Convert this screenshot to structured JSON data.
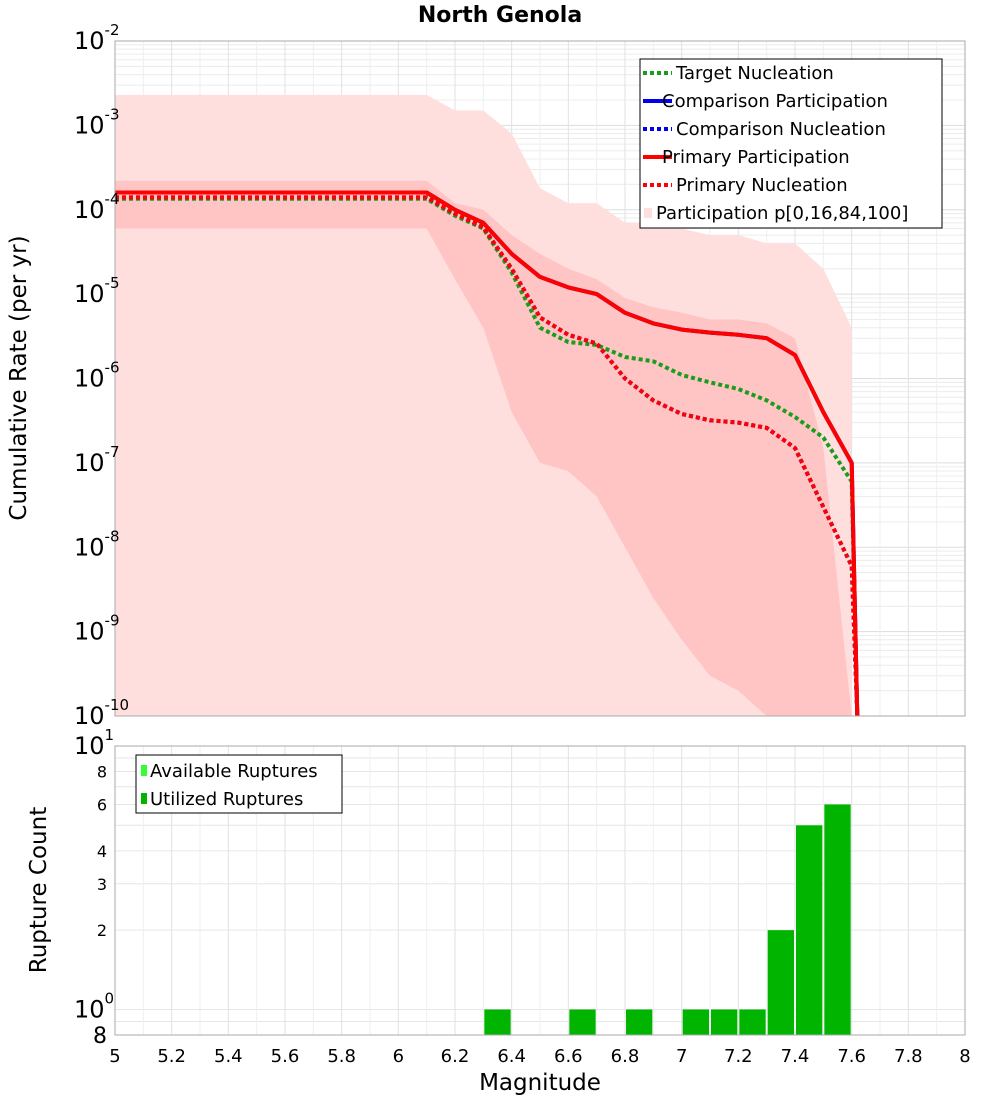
{
  "chart_data": [
    {
      "type": "line",
      "title": "North Genola",
      "xlabel": "Magnitude",
      "ylabel": "Cumulative Rate (per yr)",
      "yscale": "log",
      "xlim": [
        5,
        8
      ],
      "ylim": [
        1e-10,
        0.01
      ],
      "ytick_exponents": [
        -10,
        -9,
        -8,
        -7,
        -6,
        -5,
        -4,
        -3,
        -2
      ],
      "ytick_base": "10",
      "colors": {
        "target": "#1a9d1a",
        "comparison": "#0000ee",
        "primary": "#ff0000",
        "band_outer": "#ffdede",
        "band_inner": "#ffc4c4"
      },
      "legend": [
        {
          "label": "Target Nucleation",
          "style": "dotted",
          "color": "#1a9d1a"
        },
        {
          "label": "Comparison Participation",
          "style": "solid",
          "color": "#0000ee"
        },
        {
          "label": "Comparison Nucleation",
          "style": "dotted",
          "color": "#0000ee"
        },
        {
          "label": "Primary Participation",
          "style": "solid",
          "color": "#ff0000"
        },
        {
          "label": "Primary Nucleation",
          "style": "dotted",
          "color": "#ff0000"
        },
        {
          "label": "Participation p[0,16,84,100]",
          "style": "box",
          "color": "#ffdede"
        }
      ],
      "bands": {
        "p0_p100": {
          "x": [
            5.0,
            6.1,
            6.2,
            6.3,
            6.4,
            6.5,
            6.6,
            6.7,
            6.8,
            6.9,
            7.0,
            7.1,
            7.2,
            7.3,
            7.4,
            7.5,
            7.6
          ],
          "upper": [
            0.0023,
            0.0023,
            0.0015,
            0.0015,
            0.0008,
            0.00018,
            0.00012,
            0.00012,
            7e-05,
            7e-05,
            6e-05,
            5e-05,
            5e-05,
            4e-05,
            4e-05,
            2e-05,
            4e-06
          ],
          "lower": [
            1e-10,
            1e-10,
            1e-10,
            1e-10,
            1e-10,
            1e-10,
            1e-10,
            1e-10,
            1e-10,
            1e-10,
            1e-10,
            1e-10,
            1e-10,
            1e-10,
            1e-10,
            1e-10,
            1e-10
          ]
        },
        "p16_p84": {
          "x": [
            5.0,
            6.1,
            6.2,
            6.3,
            6.4,
            6.5,
            6.6,
            6.7,
            6.8,
            6.9,
            7.0,
            7.1,
            7.2,
            7.3,
            7.4,
            7.5,
            7.6
          ],
          "upper": [
            0.00022,
            0.00022,
            0.00012,
            0.0001,
            5e-05,
            3e-05,
            2e-05,
            1.5e-05,
            9e-06,
            7e-06,
            6e-06,
            5e-06,
            5e-06,
            4.5e-06,
            3e-06,
            1.5e-07,
            1e-10
          ],
          "lower": [
            6e-05,
            6e-05,
            1.5e-05,
            4e-06,
            4e-07,
            1e-07,
            8e-08,
            4e-08,
            1e-08,
            2.5e-09,
            8e-10,
            3e-10,
            2e-10,
            1e-10,
            1e-10,
            1e-10,
            1e-10
          ]
        }
      },
      "series": [
        {
          "name": "Target Nucleation",
          "style": "dotted",
          "x": [
            5.0,
            6.1,
            6.2,
            6.3,
            6.4,
            6.5,
            6.6,
            6.7,
            6.8,
            6.9,
            7.0,
            7.1,
            7.2,
            7.3,
            7.4,
            7.5,
            7.6,
            7.62
          ],
          "y": [
            0.000135,
            0.000135,
            8.5e-05,
            6e-05,
            1.8e-05,
            4e-06,
            2.7e-06,
            2.5e-06,
            1.8e-06,
            1.6e-06,
            1.1e-06,
            9e-07,
            7.5e-07,
            5.5e-07,
            3.5e-07,
            2e-07,
            6e-08,
            1e-10
          ]
        },
        {
          "name": "Comparison Participation",
          "style": "solid",
          "x": [
            5.0,
            6.1,
            6.2,
            6.3,
            6.4,
            6.5,
            6.6,
            6.7,
            6.8,
            6.9,
            7.0,
            7.1,
            7.2,
            7.3,
            7.4,
            7.5,
            7.6,
            7.62
          ],
          "y": [
            0.00016,
            0.00016,
            0.0001,
            7e-05,
            3e-05,
            1.6e-05,
            1.2e-05,
            1e-05,
            6e-06,
            4.5e-06,
            3.8e-06,
            3.5e-06,
            3.3e-06,
            3e-06,
            1.9e-06,
            4e-07,
            1e-07,
            1e-10
          ]
        },
        {
          "name": "Comparison Nucleation",
          "style": "dotted",
          "x": [
            5.0,
            6.1,
            6.2,
            6.3,
            6.4,
            6.5,
            6.6,
            6.7,
            6.8,
            6.9,
            7.0,
            7.1,
            7.2,
            7.3,
            7.4,
            7.5,
            7.6,
            7.62
          ],
          "y": [
            0.00014,
            0.00014,
            9e-05,
            6.2e-05,
            2e-05,
            5.3e-06,
            3.3e-06,
            2.6e-06,
            1e-06,
            5.5e-07,
            3.8e-07,
            3.2e-07,
            3e-07,
            2.6e-07,
            1.5e-07,
            3e-08,
            6e-09,
            1e-10
          ]
        },
        {
          "name": "Primary Participation",
          "style": "solid",
          "x": [
            5.0,
            6.1,
            6.2,
            6.3,
            6.4,
            6.5,
            6.6,
            6.7,
            6.8,
            6.9,
            7.0,
            7.1,
            7.2,
            7.3,
            7.4,
            7.5,
            7.6,
            7.62
          ],
          "y": [
            0.00016,
            0.00016,
            0.0001,
            7e-05,
            3e-05,
            1.6e-05,
            1.2e-05,
            1e-05,
            6e-06,
            4.5e-06,
            3.8e-06,
            3.5e-06,
            3.3e-06,
            3e-06,
            1.9e-06,
            4e-07,
            1e-07,
            1e-10
          ]
        },
        {
          "name": "Primary Nucleation",
          "style": "dotted",
          "x": [
            5.0,
            6.1,
            6.2,
            6.3,
            6.4,
            6.5,
            6.6,
            6.7,
            6.8,
            6.9,
            7.0,
            7.1,
            7.2,
            7.3,
            7.4,
            7.5,
            7.6,
            7.62
          ],
          "y": [
            0.00014,
            0.00014,
            9e-05,
            6.2e-05,
            2e-05,
            5.3e-06,
            3.3e-06,
            2.6e-06,
            1e-06,
            5.5e-07,
            3.8e-07,
            3.2e-07,
            3e-07,
            2.6e-07,
            1.5e-07,
            3e-08,
            6e-09,
            1e-10
          ]
        }
      ]
    },
    {
      "type": "bar",
      "xlabel": "Magnitude",
      "ylabel": "Rupture Count",
      "yscale": "log",
      "xlim": [
        5,
        8
      ],
      "ylim": [
        0.8,
        10
      ],
      "xticks": [
        "5",
        "5.2",
        "5.4",
        "5.6",
        "5.8",
        "6",
        "6.2",
        "6.4",
        "6.6",
        "6.8",
        "7",
        "7.2",
        "7.4",
        "7.6",
        "7.8",
        "8"
      ],
      "ytick_major": [
        {
          "base": "10",
          "exp": "1",
          "value": 10
        },
        {
          "base": "10",
          "exp": "0",
          "value": 1
        }
      ],
      "ytick_minor": [
        {
          "label": "8",
          "value": 8
        },
        {
          "label": "6",
          "value": 6
        },
        {
          "label": "4",
          "value": 4
        },
        {
          "label": "3",
          "value": 3
        },
        {
          "label": "2",
          "value": 2
        }
      ],
      "ytick_bottom": {
        "label": "8",
        "value": 0.8
      },
      "bin_width": 0.1,
      "colors": {
        "available": "#33ff33",
        "utilized": "#00b400"
      },
      "legend": [
        {
          "label": "Available Ruptures",
          "color": "#33ff33"
        },
        {
          "label": "Utilized Ruptures",
          "color": "#00b400"
        }
      ],
      "bars": [
        {
          "x": 6.35,
          "value": 1
        },
        {
          "x": 6.65,
          "value": 1
        },
        {
          "x": 6.85,
          "value": 1
        },
        {
          "x": 7.05,
          "value": 1
        },
        {
          "x": 7.15,
          "value": 1
        },
        {
          "x": 7.25,
          "value": 1
        },
        {
          "x": 7.35,
          "value": 2
        },
        {
          "x": 7.45,
          "value": 5
        },
        {
          "x": 7.55,
          "value": 6
        }
      ]
    }
  ]
}
